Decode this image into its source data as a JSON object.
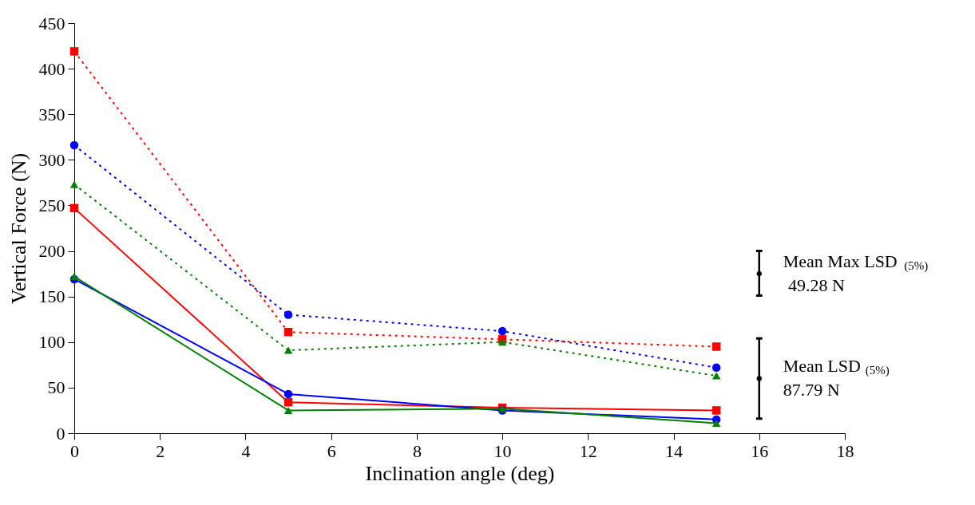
{
  "chart_data": {
    "type": "line",
    "xlabel": "Inclination angle (deg)",
    "ylabel": "Vertical Force (N)",
    "x": [
      0,
      5,
      10,
      15
    ],
    "xlim": [
      0,
      18
    ],
    "xticks": [
      0,
      2,
      4,
      6,
      8,
      10,
      12,
      14,
      16,
      18
    ],
    "ylim": [
      0,
      450
    ],
    "yticks": [
      0,
      50,
      100,
      150,
      200,
      250,
      300,
      350,
      400,
      450
    ],
    "grid": false,
    "legend": false,
    "series": [
      {
        "color": "#ff0000",
        "values": [
          419,
          111,
          103,
          95
        ],
        "line_style": "dotted",
        "marker": "square"
      },
      {
        "color": "#0000ff",
        "values": [
          316,
          130,
          112,
          72
        ],
        "line_style": "dotted",
        "marker": "circle"
      },
      {
        "color": "#008000",
        "values": [
          273,
          91,
          100,
          63
        ],
        "line_style": "dotted",
        "marker": "triangle"
      },
      {
        "color": "#ff0000",
        "values": [
          247,
          34,
          28,
          25
        ],
        "line_style": "solid",
        "marker": "square"
      },
      {
        "color": "#0000ff",
        "values": [
          169,
          43,
          25,
          15
        ],
        "line_style": "solid",
        "marker": "circle"
      },
      {
        "color": "#008000",
        "values": [
          172,
          25,
          27,
          11
        ],
        "line_style": "solid",
        "marker": "triangle"
      },
      {
        "type": "scatter",
        "color": "#000000",
        "x": [
          16,
          16
        ],
        "values": [
          175,
          60
        ],
        "marker": "circle",
        "errors": [
          [
            151,
            200
          ],
          [
            16,
            104
          ]
        ]
      }
    ],
    "annotations": [
      "Mean Max LSD $_{(5%)}$\n 49.28 N",
      "Mean LSD $_{(5%)}$\n87.79 N"
    ]
  }
}
